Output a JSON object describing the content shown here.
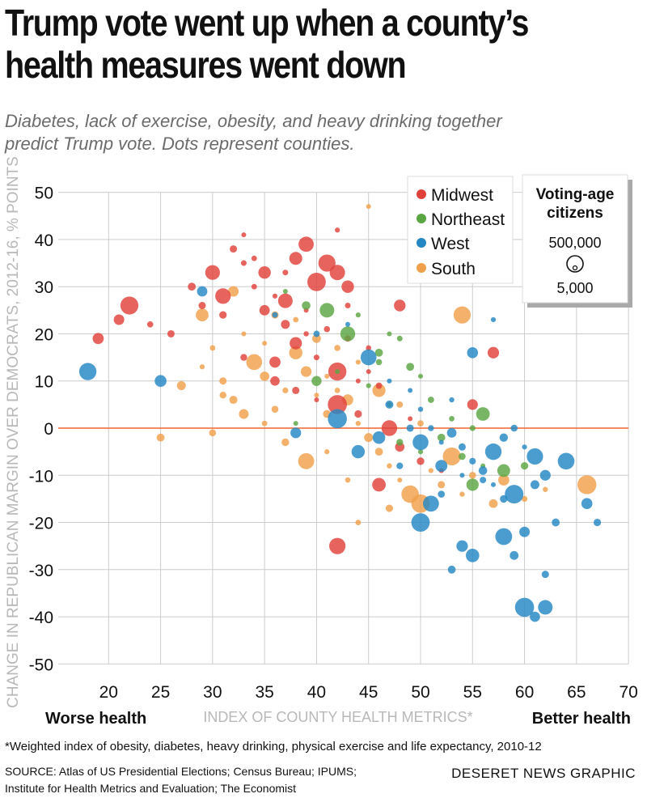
{
  "title_lines": [
    "Trump vote went up when a county’s",
    "health measures went down"
  ],
  "subtitle_lines": [
    "Diabetes, lack of exercise, obesity, and heavy drinking together",
    "predict Trump vote. Dots represent counties."
  ],
  "colors": {
    "Midwest": "#e0413a",
    "Northeast": "#5aa643",
    "West": "#2487c4",
    "South": "#f0a04a",
    "zero_line": "#f0642d",
    "grid": "#cccccc",
    "axis_label": "#b8b8b8"
  },
  "chart_data": {
    "type": "scatter",
    "xlabel": "INDEX OF COUNTY HEALTH METRICS*",
    "ylabel": "CHANGE IN REPUBLICAN MARGIN OVER DEMOCRATS, 2012-16, % POINTS",
    "xlim": [
      15,
      71
    ],
    "ylim": [
      -52,
      52
    ],
    "x_ticks": [
      "20",
      "25",
      "30",
      "35",
      "40",
      "45",
      "50",
      "55",
      "60",
      "65",
      "70"
    ],
    "y_ticks": [
      "50",
      "40",
      "30",
      "20",
      "10",
      "0",
      "-10",
      "-20",
      "-30",
      "-40",
      "-50"
    ],
    "x_end_labels": {
      "left": "Worse health",
      "right": "Better health"
    },
    "reference_line_y": 0,
    "grid": "vertical and horizontal gridlines",
    "legend": {
      "placement": "top-right",
      "entries": [
        "Midwest",
        "Northeast",
        "West",
        "South"
      ]
    },
    "size_legend": {
      "title_lines": [
        "Voting-age",
        "citizens"
      ],
      "large_label": "500,000",
      "small_label": "5,000"
    },
    "series": [
      {
        "name": "Midwest",
        "points": [
          [
            19,
            19
          ],
          [
            21,
            23
          ],
          [
            22,
            26
          ],
          [
            24,
            22
          ],
          [
            26,
            20
          ],
          [
            28,
            30
          ],
          [
            29,
            26
          ],
          [
            30,
            33
          ],
          [
            31,
            24
          ],
          [
            32,
            38
          ],
          [
            33,
            35
          ],
          [
            34,
            30
          ],
          [
            35,
            33
          ],
          [
            36,
            28
          ],
          [
            37,
            33
          ],
          [
            38,
            36
          ],
          [
            39,
            39
          ],
          [
            40,
            31
          ],
          [
            41,
            35
          ],
          [
            42,
            33
          ],
          [
            43,
            30
          ],
          [
            35,
            25
          ],
          [
            37,
            22
          ],
          [
            39,
            25
          ],
          [
            41,
            21
          ],
          [
            43,
            19
          ],
          [
            45,
            17
          ],
          [
            33,
            15
          ],
          [
            36,
            14
          ],
          [
            38,
            18
          ],
          [
            40,
            15
          ],
          [
            42,
            12
          ],
          [
            44,
            10
          ],
          [
            46,
            9
          ],
          [
            36,
            10
          ],
          [
            38,
            8
          ],
          [
            40,
            6
          ],
          [
            42,
            5
          ],
          [
            44,
            3
          ],
          [
            47,
            0
          ],
          [
            48,
            -4
          ],
          [
            50,
            -7
          ],
          [
            52,
            -9
          ],
          [
            46,
            -12
          ],
          [
            42,
            -25
          ],
          [
            43,
            26
          ],
          [
            33,
            41
          ],
          [
            42,
            42
          ],
          [
            48,
            26
          ],
          [
            57,
            16
          ],
          [
            55,
            5
          ],
          [
            31,
            28
          ],
          [
            34,
            36
          ],
          [
            37,
            27
          ],
          [
            39,
            20
          ],
          [
            45,
            12
          ],
          [
            49,
            2
          ]
        ]
      },
      {
        "name": "Northeast",
        "points": [
          [
            37,
            29
          ],
          [
            39,
            26
          ],
          [
            41,
            25
          ],
          [
            43,
            20
          ],
          [
            44,
            24
          ],
          [
            46,
            16
          ],
          [
            47,
            20
          ],
          [
            48,
            19
          ],
          [
            49,
            13
          ],
          [
            50,
            11
          ],
          [
            51,
            6
          ],
          [
            53,
            2
          ],
          [
            55,
            0
          ],
          [
            56,
            3
          ],
          [
            45,
            9
          ],
          [
            47,
            5
          ],
          [
            42,
            12
          ],
          [
            40,
            10
          ],
          [
            38,
            1
          ],
          [
            48,
            -3
          ],
          [
            50,
            -5
          ],
          [
            52,
            -2
          ],
          [
            54,
            -6
          ],
          [
            56,
            -8
          ],
          [
            58,
            -9
          ],
          [
            60,
            -8
          ],
          [
            55,
            -12
          ],
          [
            46,
            14
          ]
        ]
      },
      {
        "name": "West",
        "points": [
          [
            18,
            12
          ],
          [
            25,
            10
          ],
          [
            29,
            29
          ],
          [
            36,
            24
          ],
          [
            40,
            20
          ],
          [
            43,
            22
          ],
          [
            45,
            15
          ],
          [
            47,
            10
          ],
          [
            49,
            8
          ],
          [
            50,
            4
          ],
          [
            51,
            0
          ],
          [
            52,
            -3
          ],
          [
            53,
            -1
          ],
          [
            54,
            -4
          ],
          [
            55,
            -7
          ],
          [
            56,
            -9
          ],
          [
            57,
            -5
          ],
          [
            58,
            -2
          ],
          [
            59,
            0
          ],
          [
            60,
            -4
          ],
          [
            61,
            -6
          ],
          [
            62,
            -10
          ],
          [
            63,
            -20
          ],
          [
            64,
            -7
          ],
          [
            66,
            -16
          ],
          [
            67,
            -20
          ],
          [
            50,
            -20
          ],
          [
            51,
            -16
          ],
          [
            52,
            -14
          ],
          [
            53,
            -30
          ],
          [
            54,
            -25
          ],
          [
            55,
            -27
          ],
          [
            58,
            -23
          ],
          [
            59,
            -27
          ],
          [
            60,
            -38
          ],
          [
            61,
            -40
          ],
          [
            62,
            -38
          ],
          [
            62,
            -31
          ],
          [
            57,
            -12
          ],
          [
            59,
            -14
          ],
          [
            61,
            -12
          ],
          [
            60,
            -22
          ],
          [
            48,
            -8
          ],
          [
            46,
            -2
          ],
          [
            44,
            -5
          ],
          [
            47,
            5
          ],
          [
            49,
            0
          ],
          [
            50,
            -3
          ],
          [
            52,
            -8
          ],
          [
            54,
            -10
          ],
          [
            56,
            -11
          ],
          [
            58,
            -15
          ],
          [
            42,
            2
          ],
          [
            38,
            -1
          ],
          [
            57,
            23
          ],
          [
            55,
            16
          ],
          [
            53,
            6
          ]
        ]
      },
      {
        "name": "South",
        "points": [
          [
            25,
            -2
          ],
          [
            27,
            9
          ],
          [
            29,
            13
          ],
          [
            30,
            17
          ],
          [
            31,
            10
          ],
          [
            32,
            6
          ],
          [
            33,
            20
          ],
          [
            34,
            14
          ],
          [
            35,
            11
          ],
          [
            36,
            4
          ],
          [
            37,
            8
          ],
          [
            38,
            16
          ],
          [
            39,
            12
          ],
          [
            40,
            7
          ],
          [
            41,
            3
          ],
          [
            42,
            8
          ],
          [
            43,
            6
          ],
          [
            44,
            1
          ],
          [
            45,
            -2
          ],
          [
            46,
            -5
          ],
          [
            47,
            -8
          ],
          [
            48,
            -11
          ],
          [
            49,
            -14
          ],
          [
            50,
            -16
          ],
          [
            51,
            -9
          ],
          [
            52,
            -12
          ],
          [
            53,
            -6
          ],
          [
            54,
            -14
          ],
          [
            55,
            -10
          ],
          [
            57,
            -16
          ],
          [
            58,
            -11
          ],
          [
            60,
            -15
          ],
          [
            62,
            -13
          ],
          [
            66,
            -12
          ],
          [
            36,
            24
          ],
          [
            38,
            23
          ],
          [
            40,
            19
          ],
          [
            42,
            17
          ],
          [
            44,
            14
          ],
          [
            46,
            8
          ],
          [
            48,
            5
          ],
          [
            50,
            1
          ],
          [
            45,
            47
          ],
          [
            54,
            24
          ],
          [
            44,
            -20
          ],
          [
            39,
            -7
          ],
          [
            37,
            -3
          ],
          [
            35,
            1
          ],
          [
            33,
            3
          ],
          [
            31,
            7
          ],
          [
            29,
            24
          ],
          [
            32,
            29
          ],
          [
            41,
            -5
          ],
          [
            43,
            -11
          ],
          [
            47,
            -17
          ],
          [
            41,
            11
          ],
          [
            35,
            18
          ],
          [
            30,
            -1
          ]
        ]
      }
    ]
  }
}
